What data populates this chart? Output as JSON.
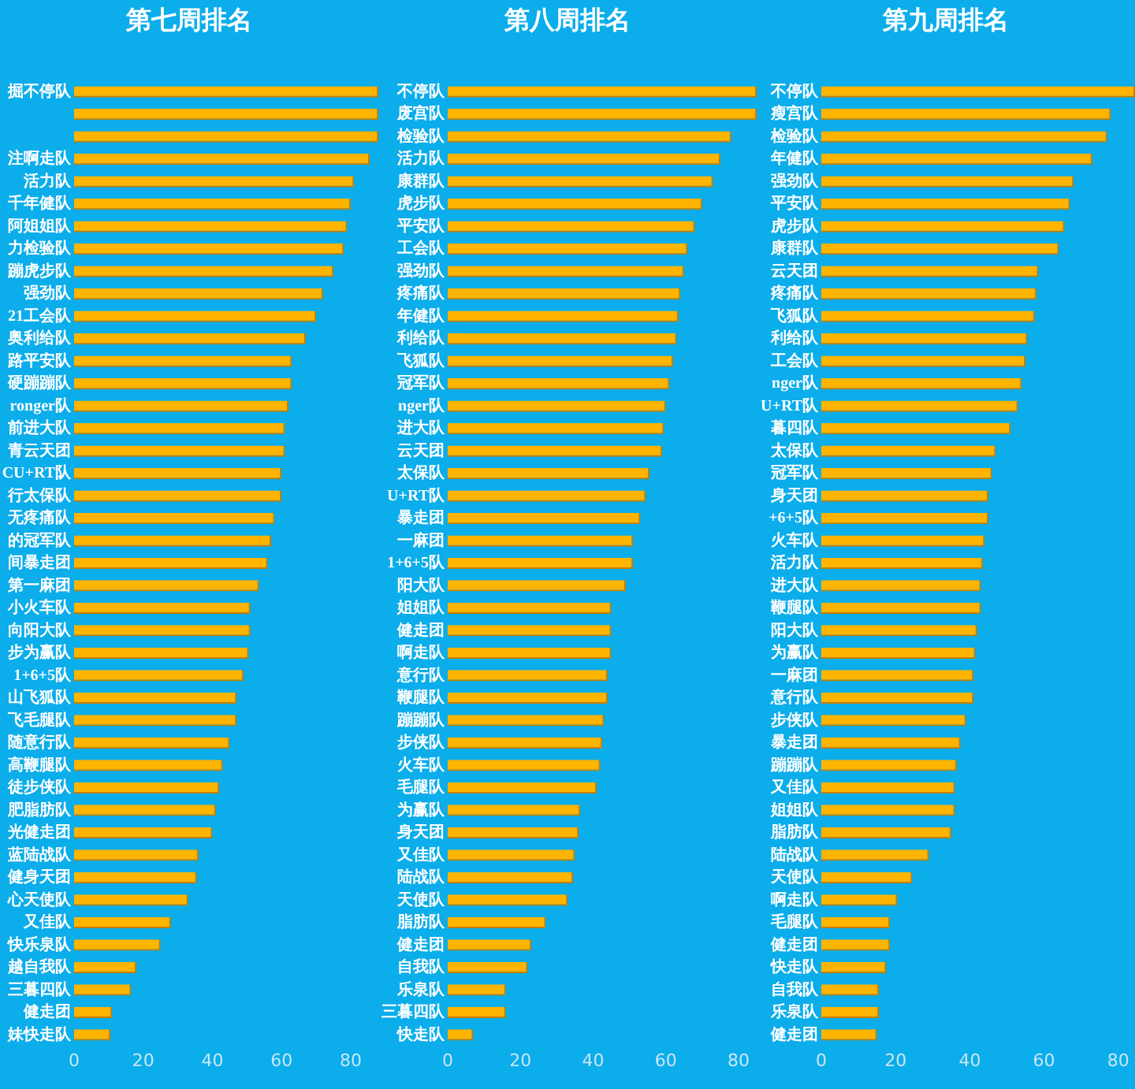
{
  "chart_data": [
    {
      "type": "bar",
      "orientation": "horizontal",
      "title": "第七周排名",
      "color": "#ffb400",
      "xlim": [
        0,
        88
      ],
      "xticks": [
        0,
        20,
        40,
        60,
        80
      ],
      "grid": false,
      "legend": false,
      "categories": [
        "掘不停队",
        null,
        null,
        "注啊走队",
        "活力队",
        "千年健队",
        "阿姐姐队",
        "力检验队",
        "蹦虎步队",
        "强劲队",
        "21工会队",
        "奥利给队",
        "路平安队",
        "硬蹦蹦队",
        "ronger队",
        "前进大队",
        "青云天团",
        "CU+RT队",
        "行太保队",
        "无疼痛队",
        "的冠军队",
        "间暴走团",
        "第一麻团",
        "小火车队",
        "向阳大队",
        "步为赢队",
        "1+6+5队",
        "山飞狐队",
        "飞毛腿队",
        "随意行队",
        "高鞭腿队",
        "徒步侠队",
        "肥脂肪队",
        "光健走团",
        "蓝陆战队",
        "健身天团",
        "心天使队",
        "又佳队",
        "快乐泉队",
        "越自我队",
        "三暮四队",
        "健走团",
        "妹快走队"
      ],
      "values": [
        88,
        88,
        88,
        85.5,
        81,
        80,
        79,
        78,
        75,
        72,
        70,
        67,
        63,
        63,
        62,
        61,
        61,
        60,
        60,
        58,
        57,
        56,
        53.5,
        51,
        51,
        50.5,
        49,
        47,
        47,
        45,
        43,
        42,
        41,
        40,
        36,
        35.5,
        33,
        28,
        25,
        18,
        16.5,
        11,
        10.5
      ]
    },
    {
      "type": "bar",
      "orientation": "horizontal",
      "title": "第八周排名",
      "color": "#ffb400",
      "xlim": [
        0,
        85
      ],
      "xticks": [
        0,
        20,
        40,
        60,
        80
      ],
      "grid": false,
      "legend": false,
      "categories": [
        "不停队",
        "废宫队",
        "检验队",
        "活力队",
        "康群队",
        "虎步队",
        "平安队",
        "工会队",
        "强劲队",
        "疼痛队",
        "年健队",
        "利给队",
        "飞狐队",
        "冠军队",
        "nger队",
        "进大队",
        "云天团",
        "太保队",
        "U+RT队",
        "暴走团",
        "一麻团",
        "1+6+5队",
        "阳大队",
        "姐姐队",
        "健走团",
        "啊走队",
        "意行队",
        "鞭腿队",
        "蹦蹦队",
        "步侠队",
        "火车队",
        "毛腿队",
        "为赢队",
        "身天团",
        "又佳队",
        "陆战队",
        "天使队",
        "脂肪队",
        "健走团",
        "自我队",
        "乐泉队",
        "三暮四队",
        "快走队"
      ],
      "values": [
        85,
        85,
        78,
        75,
        73,
        70,
        68,
        66,
        65,
        64,
        63.5,
        63,
        62,
        61,
        60,
        59.5,
        59,
        55.5,
        54.5,
        53,
        51,
        51,
        49,
        45,
        45,
        45,
        44,
        44,
        43,
        42.5,
        42,
        41,
        36.5,
        36,
        35,
        34.5,
        33,
        27,
        23,
        22,
        16,
        16,
        7
      ]
    },
    {
      "type": "bar",
      "orientation": "horizontal",
      "title": "第九周排名",
      "color": "#ffb400",
      "xlim": [
        0,
        84.5
      ],
      "xticks": [
        0,
        20,
        40,
        60,
        80
      ],
      "grid": false,
      "legend": false,
      "categories": [
        "不停队",
        "瘦宫队",
        "检验队",
        "年健队",
        "强劲队",
        "平安队",
        "虎步队",
        "康群队",
        "云天团",
        "疼痛队",
        "飞狐队",
        "利给队",
        "工会队",
        "nger队",
        "U+RT队",
        "暮四队",
        "太保队",
        "冠军队",
        "身天团",
        "+6+5队",
        "火车队",
        "活力队",
        "进大队",
        "鞭腿队",
        "阳大队",
        "为赢队",
        "一麻团",
        "意行队",
        "步侠队",
        "暴走团",
        "蹦蹦队",
        "又佳队",
        "姐姐队",
        "脂肪队",
        "陆战队",
        "天使队",
        "啊走队",
        "毛腿队",
        "健走团",
        "快走队",
        "自我队",
        "乐泉队",
        "健走团"
      ],
      "values": [
        84.5,
        78,
        77,
        73,
        68,
        67,
        65.5,
        64,
        58.5,
        58,
        57.5,
        55.5,
        55,
        54,
        53,
        51,
        47,
        46,
        45,
        45,
        44,
        43.5,
        43,
        43,
        42,
        41.5,
        41,
        41,
        39,
        37.5,
        36.5,
        36,
        36,
        35,
        29,
        24.5,
        20.5,
        18.5,
        18.5,
        17.5,
        15.5,
        15.5,
        15
      ]
    }
  ]
}
